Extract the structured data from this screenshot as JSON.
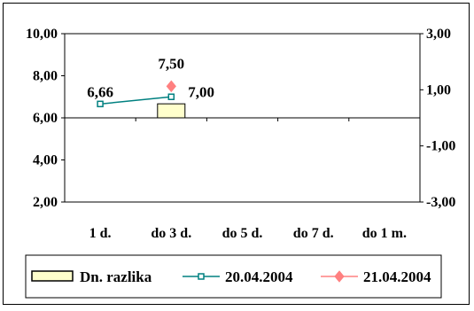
{
  "chart_data": {
    "type": "bar",
    "categories": [
      "1 d.",
      "do 3 d.",
      "do 5 d.",
      "do 7 d.",
      "do 1 m."
    ],
    "series": [
      {
        "name": "Dn. razlika",
        "type": "bar",
        "axis": "right",
        "values": [
          null,
          0.5,
          null,
          null,
          null
        ],
        "color": "#ffffcc"
      },
      {
        "name": "20.04.2004",
        "type": "line",
        "axis": "left",
        "values": [
          6.66,
          7.0,
          null,
          null,
          null
        ],
        "color": "#008080",
        "marker": "square"
      },
      {
        "name": "21.04.2004",
        "type": "line",
        "axis": "left",
        "values": [
          null,
          7.5,
          null,
          null,
          null
        ],
        "color": "#ff8080",
        "marker": "diamond"
      }
    ],
    "y_left": {
      "ylim": [
        2,
        10
      ],
      "ticks": [
        "2,00",
        "4,00",
        "6,00",
        "8,00",
        "10,00"
      ],
      "tick_values": [
        2,
        4,
        6,
        8,
        10
      ]
    },
    "y_right": {
      "ylim": [
        -3,
        3
      ],
      "ticks": [
        "-3,00",
        "-1,00",
        "1,00",
        "3,00"
      ],
      "tick_values": [
        -3,
        -1,
        1,
        3
      ]
    },
    "data_labels": [
      {
        "series": 1,
        "index": 0,
        "text": "6,66"
      },
      {
        "series": 1,
        "index": 1,
        "text": "7,00"
      },
      {
        "series": 2,
        "index": 1,
        "text": "7,50"
      }
    ],
    "legend_position": "bottom",
    "grid": false
  }
}
